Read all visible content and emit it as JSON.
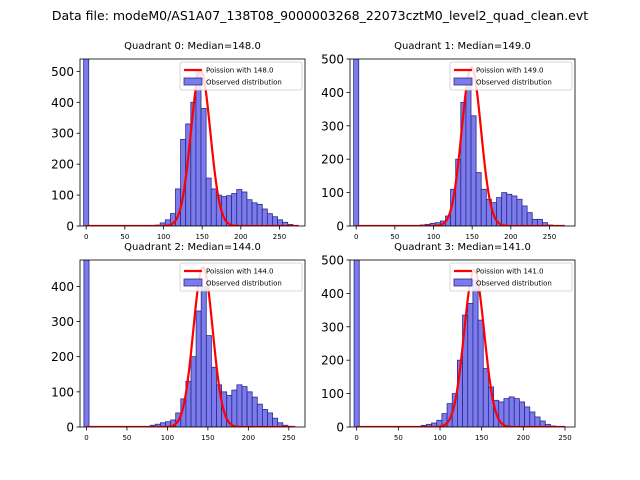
{
  "suptitle": "Data file: modeM0/AS1A07_138T08_9000003268_22073cztM0_level2_quad_clean.evt",
  "colors": {
    "hist_fill": "#7b7bec",
    "hist_edge": "#2a2a8c",
    "poisson_line": "#ff0000",
    "background": "#ffffff"
  },
  "chart_data": [
    {
      "type": "bar",
      "title": "Quadrant 0: Median=148.0",
      "legend": {
        "placement": "top-right",
        "line_label": "Poission with 148.0",
        "bar_label": "Observed distribution"
      },
      "xlim": [
        -8,
        283
      ],
      "ylim": [
        0,
        540
      ],
      "xticks": [
        0,
        50,
        100,
        150,
        200,
        250
      ],
      "yticks": [
        0,
        100,
        200,
        300,
        400,
        500
      ],
      "bin_width": 6.6,
      "bins": [
        {
          "x": 0,
          "y": 540
        },
        {
          "x": 85.8,
          "y": 2
        },
        {
          "x": 92.4,
          "y": 3
        },
        {
          "x": 99.0,
          "y": 10
        },
        {
          "x": 105.6,
          "y": 20
        },
        {
          "x": 112.2,
          "y": 40
        },
        {
          "x": 118.8,
          "y": 120
        },
        {
          "x": 125.4,
          "y": 280
        },
        {
          "x": 132.0,
          "y": 330
        },
        {
          "x": 138.6,
          "y": 400
        },
        {
          "x": 145.2,
          "y": 500
        },
        {
          "x": 151.8,
          "y": 380
        },
        {
          "x": 158.4,
          "y": 155
        },
        {
          "x": 165.0,
          "y": 120
        },
        {
          "x": 171.6,
          "y": 100
        },
        {
          "x": 178.2,
          "y": 95
        },
        {
          "x": 184.8,
          "y": 98
        },
        {
          "x": 191.4,
          "y": 105
        },
        {
          "x": 198.0,
          "y": 118
        },
        {
          "x": 204.6,
          "y": 110
        },
        {
          "x": 211.2,
          "y": 85
        },
        {
          "x": 217.8,
          "y": 75
        },
        {
          "x": 224.4,
          "y": 70
        },
        {
          "x": 231.0,
          "y": 55
        },
        {
          "x": 237.6,
          "y": 40
        },
        {
          "x": 244.2,
          "y": 30
        },
        {
          "x": 250.8,
          "y": 20
        },
        {
          "x": 257.4,
          "y": 12
        },
        {
          "x": 264.0,
          "y": 5
        }
      ],
      "poisson": {
        "lambda": 148.0,
        "peak": 505,
        "sigma": 12.5,
        "x_range": [
          0,
          275
        ]
      }
    },
    {
      "type": "bar",
      "title": "Quadrant 1: Median=149.0",
      "legend": {
        "placement": "top-right",
        "line_label": "Poission with 149.0",
        "bar_label": "Observed distribution"
      },
      "xlim": [
        -8,
        283
      ],
      "ylim": [
        0,
        500
      ],
      "xticks": [
        0,
        50,
        100,
        150,
        200,
        250
      ],
      "yticks": [
        0,
        100,
        200,
        300,
        400,
        500
      ],
      "bin_width": 6.6,
      "bins": [
        {
          "x": 0,
          "y": 500
        },
        {
          "x": 85.8,
          "y": 3
        },
        {
          "x": 92.4,
          "y": 5
        },
        {
          "x": 99.0,
          "y": 8
        },
        {
          "x": 105.6,
          "y": 10
        },
        {
          "x": 112.2,
          "y": 15
        },
        {
          "x": 118.8,
          "y": 30
        },
        {
          "x": 125.4,
          "y": 110
        },
        {
          "x": 132.0,
          "y": 200
        },
        {
          "x": 138.6,
          "y": 370
        },
        {
          "x": 145.2,
          "y": 440
        },
        {
          "x": 151.8,
          "y": 330
        },
        {
          "x": 158.4,
          "y": 160
        },
        {
          "x": 165.0,
          "y": 110
        },
        {
          "x": 171.6,
          "y": 80
        },
        {
          "x": 178.2,
          "y": 70
        },
        {
          "x": 184.8,
          "y": 85
        },
        {
          "x": 191.4,
          "y": 100
        },
        {
          "x": 198.0,
          "y": 95
        },
        {
          "x": 204.6,
          "y": 90
        },
        {
          "x": 211.2,
          "y": 80
        },
        {
          "x": 217.8,
          "y": 60
        },
        {
          "x": 224.4,
          "y": 40
        },
        {
          "x": 231.0,
          "y": 20
        },
        {
          "x": 237.6,
          "y": 20
        },
        {
          "x": 244.2,
          "y": 10
        },
        {
          "x": 250.8,
          "y": 3
        }
      ],
      "poisson": {
        "lambda": 149.0,
        "peak": 475,
        "sigma": 12.5,
        "x_range": [
          0,
          270
        ]
      }
    },
    {
      "type": "bar",
      "title": "Quadrant 2: Median=144.0",
      "legend": {
        "placement": "top-right",
        "line_label": "Poission with 144.0",
        "bar_label": "Observed distribution"
      },
      "xlim": [
        -8,
        270
      ],
      "ylim": [
        0,
        475
      ],
      "xticks": [
        0,
        50,
        100,
        150,
        200,
        250
      ],
      "yticks": [
        0,
        100,
        200,
        300,
        400
      ],
      "bin_width": 6.3,
      "bins": [
        {
          "x": 0,
          "y": 475
        },
        {
          "x": 81.9,
          "y": 5
        },
        {
          "x": 88.2,
          "y": 8
        },
        {
          "x": 94.5,
          "y": 12
        },
        {
          "x": 100.8,
          "y": 15
        },
        {
          "x": 107.1,
          "y": 20
        },
        {
          "x": 113.4,
          "y": 40
        },
        {
          "x": 119.7,
          "y": 80
        },
        {
          "x": 126.0,
          "y": 130
        },
        {
          "x": 132.3,
          "y": 200
        },
        {
          "x": 138.6,
          "y": 330
        },
        {
          "x": 144.9,
          "y": 400
        },
        {
          "x": 151.2,
          "y": 260
        },
        {
          "x": 157.5,
          "y": 170
        },
        {
          "x": 163.8,
          "y": 120
        },
        {
          "x": 170.1,
          "y": 100
        },
        {
          "x": 176.4,
          "y": 90
        },
        {
          "x": 182.7,
          "y": 105
        },
        {
          "x": 189.0,
          "y": 120
        },
        {
          "x": 195.3,
          "y": 115
        },
        {
          "x": 201.6,
          "y": 100
        },
        {
          "x": 207.9,
          "y": 85
        },
        {
          "x": 214.2,
          "y": 65
        },
        {
          "x": 220.5,
          "y": 50
        },
        {
          "x": 226.8,
          "y": 40
        },
        {
          "x": 233.1,
          "y": 25
        },
        {
          "x": 239.4,
          "y": 12
        },
        {
          "x": 245.7,
          "y": 5
        }
      ],
      "poisson": {
        "lambda": 144.0,
        "peak": 455,
        "sigma": 12.0,
        "x_range": [
          0,
          258
        ]
      }
    },
    {
      "type": "bar",
      "title": "Quadrant 3: Median=141.0",
      "legend": {
        "placement": "top-right",
        "line_label": "Poission with 141.0",
        "bar_label": "Observed distribution"
      },
      "xlim": [
        -8,
        262
      ],
      "ylim": [
        0,
        500
      ],
      "xticks": [
        0,
        50,
        100,
        150,
        200,
        250
      ],
      "yticks": [
        0,
        100,
        200,
        300,
        400,
        500
      ],
      "bin_width": 6.2,
      "bins": [
        {
          "x": 0,
          "y": 500
        },
        {
          "x": 80.6,
          "y": 5
        },
        {
          "x": 86.8,
          "y": 8
        },
        {
          "x": 93.0,
          "y": 12
        },
        {
          "x": 99.2,
          "y": 20
        },
        {
          "x": 105.4,
          "y": 40
        },
        {
          "x": 111.6,
          "y": 70
        },
        {
          "x": 117.8,
          "y": 100
        },
        {
          "x": 124.0,
          "y": 200
        },
        {
          "x": 130.2,
          "y": 335
        },
        {
          "x": 136.4,
          "y": 370
        },
        {
          "x": 142.6,
          "y": 440
        },
        {
          "x": 148.8,
          "y": 320
        },
        {
          "x": 155.0,
          "y": 175
        },
        {
          "x": 161.2,
          "y": 120
        },
        {
          "x": 167.4,
          "y": 80
        },
        {
          "x": 173.6,
          "y": 75
        },
        {
          "x": 179.8,
          "y": 85
        },
        {
          "x": 186.0,
          "y": 90
        },
        {
          "x": 192.2,
          "y": 85
        },
        {
          "x": 198.4,
          "y": 75
        },
        {
          "x": 204.6,
          "y": 60
        },
        {
          "x": 210.8,
          "y": 45
        },
        {
          "x": 217.0,
          "y": 30
        },
        {
          "x": 223.2,
          "y": 18
        },
        {
          "x": 229.4,
          "y": 8
        },
        {
          "x": 235.6,
          "y": 3
        }
      ],
      "poisson": {
        "lambda": 141.0,
        "peak": 470,
        "sigma": 12.0,
        "x_range": [
          0,
          250
        ]
      }
    }
  ]
}
